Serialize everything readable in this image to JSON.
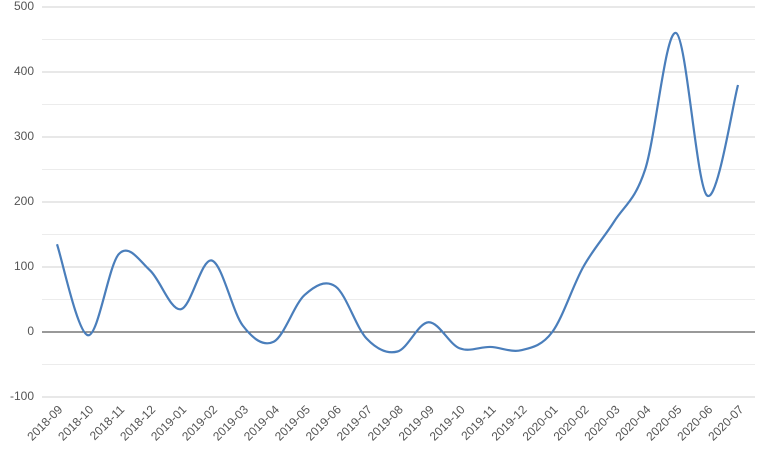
{
  "chart_data": {
    "type": "line",
    "categories": [
      "2018-09",
      "2018-10",
      "2018-11",
      "2018-12",
      "2019-01",
      "2019-02",
      "2019-03",
      "2019-04",
      "2019-05",
      "2019-06",
      "2019-07",
      "2019-08",
      "2019-09",
      "2019-10",
      "2019-11",
      "2019-12",
      "2020-01",
      "2020-02",
      "2020-03",
      "2020-04",
      "2020-05",
      "2020-06",
      "2020-07"
    ],
    "series": [
      {
        "color": "#4a7ebb",
        "values": [
          135,
          -5,
          120,
          95,
          35,
          110,
          10,
          -15,
          57,
          70,
          -10,
          -30,
          15,
          -25,
          -23,
          -28,
          0,
          100,
          170,
          250,
          460,
          210,
          380
        ]
      }
    ],
    "ylim": [
      -100,
      500
    ],
    "yticks": [
      -100,
      0,
      100,
      200,
      300,
      400,
      500
    ],
    "grid": true,
    "minor_grid": true,
    "smooth": true
  }
}
